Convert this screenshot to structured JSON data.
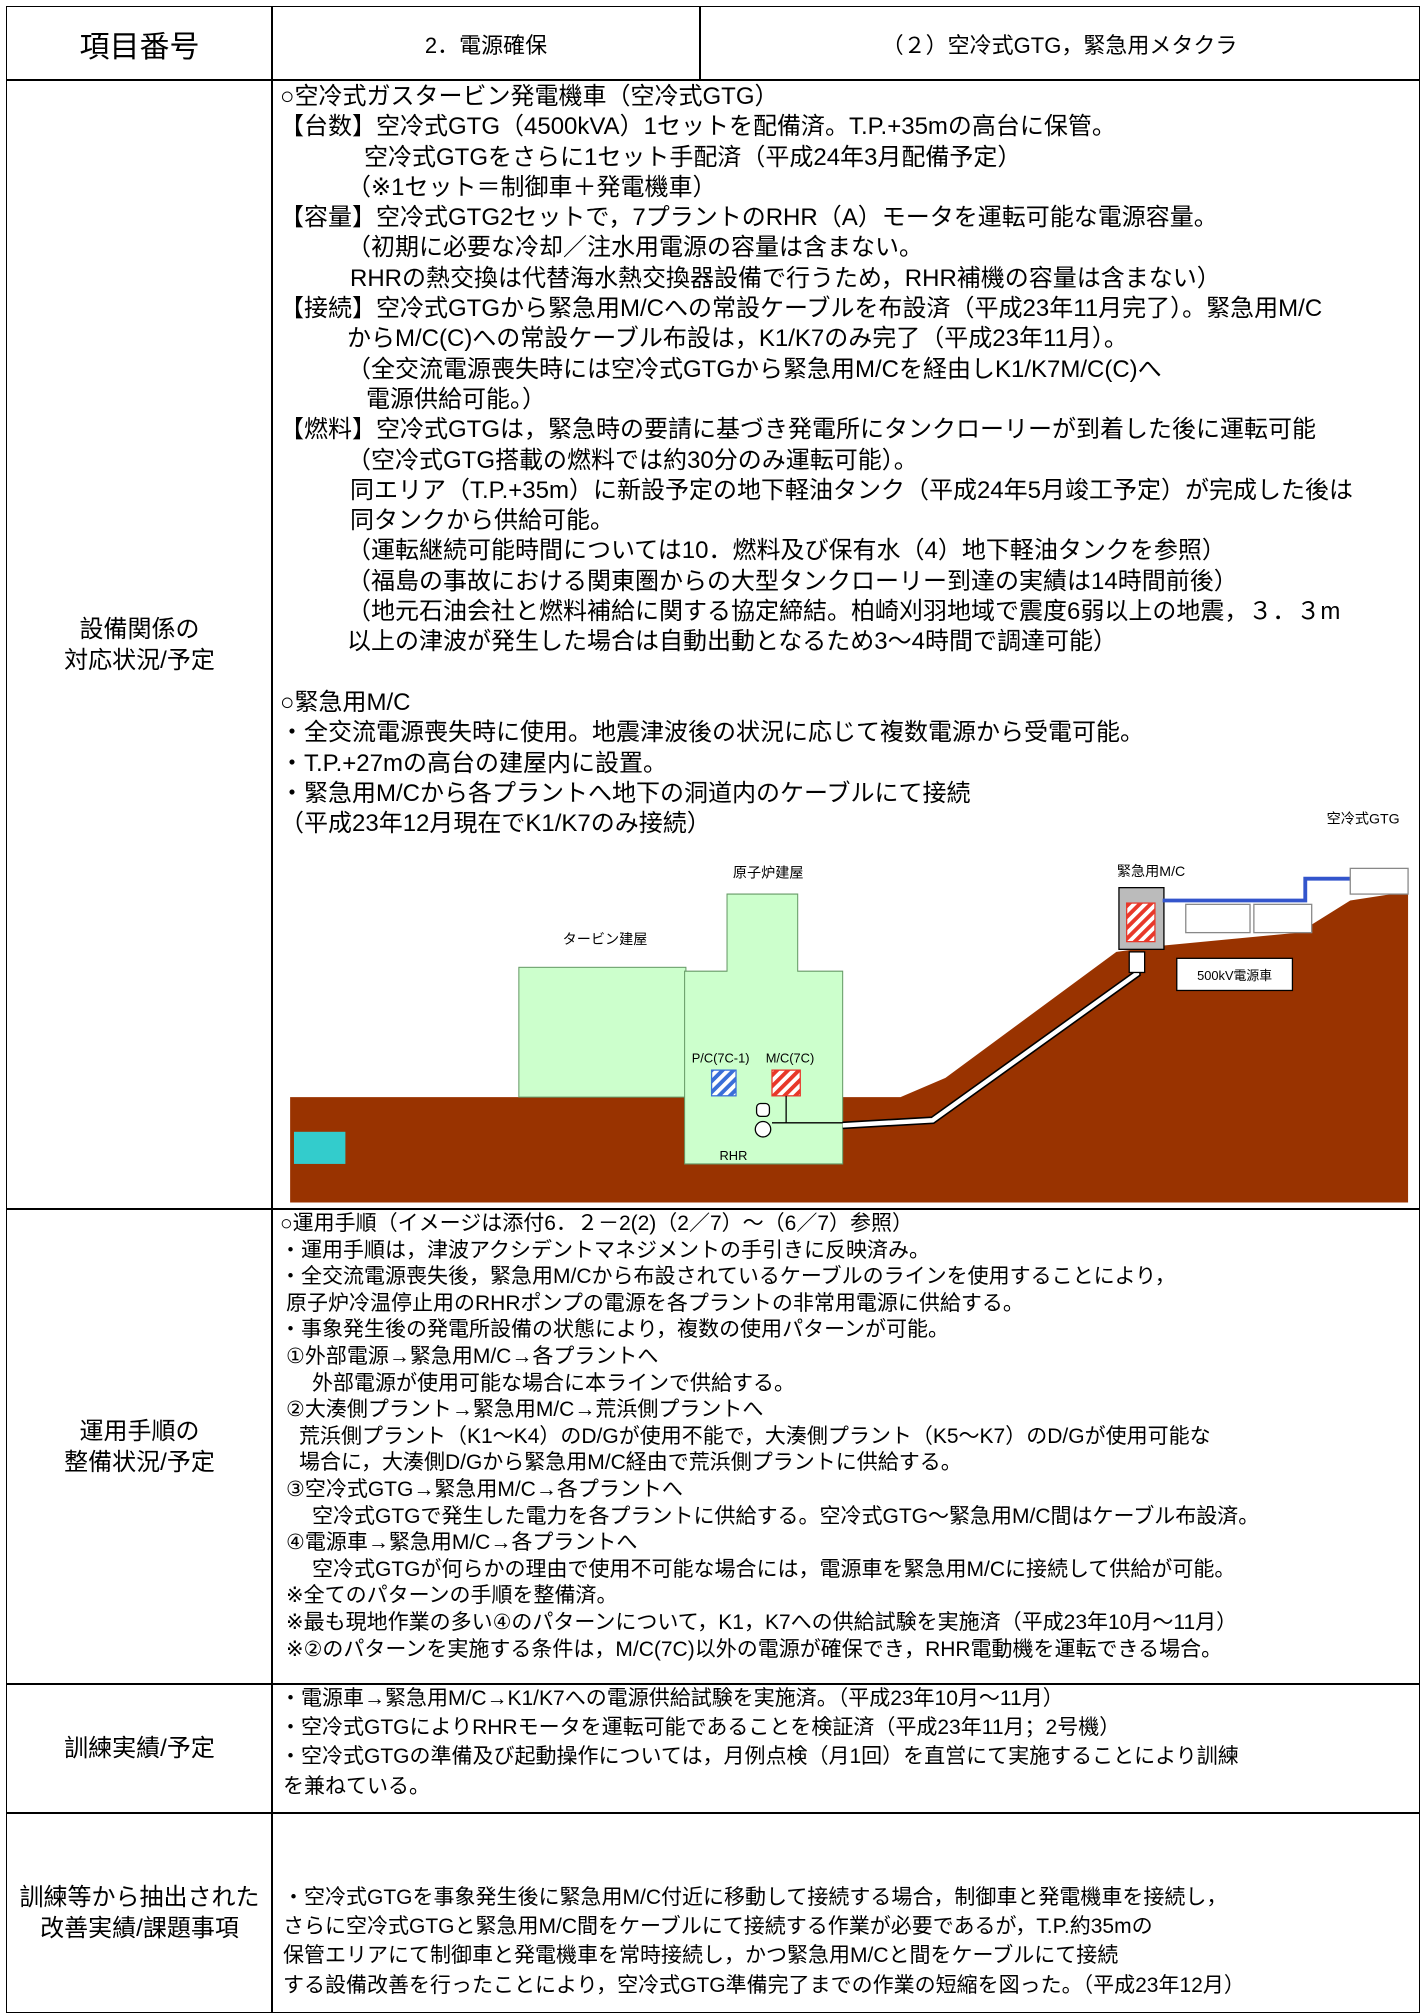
{
  "header": {
    "label": "項目番号",
    "item": "2．電源確保",
    "subitem": "（２）空冷式GTG，緊急用メタクラ"
  },
  "rows": [
    {
      "label": [
        "設備関係の",
        "対応状況/予定"
      ],
      "blocks": [
        [
          "○空冷式ガスタービン発電機車（空冷式GTG）",
          "【台数】空冷式GTG（4500kVA）1セットを配備済。T.P.+35mの高台に保管。",
          "空冷式GTGをさらに1セット手配済（平成24年3月配備予定）",
          "（※1セット＝制御車＋発電機車）",
          "【容量】空冷式GTG2セットで，7プラントのRHR（A）モータを運転可能な電源容量。",
          "（初期に必要な冷却／注水用電源の容量は含まない。",
          "RHRの熱交換は代替海水熱交換器設備で行うため，RHR補機の容量は含まない）",
          "【接続】空冷式GTGから緊急用M/Cへの常設ケーブルを布設済（平成23年11月完了）。緊急用M/C",
          "からM/C(C)への常設ケーブル布設は，K1/K7のみ完了（平成23年11月）。",
          "（全交流電源喪失時には空冷式GTGから緊急用M/Cを経由しK1/K7M/C(C)へ",
          "電源供給可能。）",
          "【燃料】空冷式GTGは，緊急時の要請に基づき発電所にタンクローリーが到着した後に運転可能",
          "（空冷式GTG搭載の燃料では約30分のみ運転可能）。",
          "同エリア（T.P.+35m）に新設予定の地下軽油タンク（平成24年5月竣工予定）が完成した後は",
          "同タンクから供給可能。",
          "（運転継続可能時間については10．燃料及び保有水（4）地下軽油タンクを参照）",
          "（福島の事故における関東圏からの大型タンクローリー到達の実績は14時間前後）",
          "（地元石油会社と燃料補給に関する協定締結。柏崎刈羽地域で震度6弱以上の地震，３．３m",
          "以上の津波が発生した場合は自動出動となるため3～4時間で調達可能）"
        ],
        [
          "○緊急用M/C",
          "・全交流電源喪失時に使用。地震津波後の状況に応じて複数電源から受電可能。",
          "・T.P.+27mの高台の建屋内に設置。",
          "・緊急用M/Cから各プラントへ地下の洞道内のケーブルにて接続",
          "（平成23年12月現在でK1/K7のみ接続）"
        ]
      ],
      "diagram": {
        "gtg": "空冷式GTG",
        "emergency_mc": "緊急用M/C",
        "reactor_building": "原子炉建屋",
        "turbine_building": "タービン建屋",
        "pc": "P/C(7C-1)",
        "mc": "M/C(7C)",
        "rhr": "RHR",
        "power_vehicle": "500kV電源車"
      }
    },
    {
      "label": [
        "運用手順の",
        "整備状況/予定"
      ],
      "blocks": [
        [
          "○運用手順（イメージは添付6．２－2(2)（2／7）～（6／7）参照）",
          "・運用手順は，津波アクシデントマネジメントの手引きに反映済み。",
          "・全交流電源喪失後，緊急用M/Cから布設されているケーブルのラインを使用することにより，",
          "原子炉冷温停止用のRHRポンプの電源を各プラントの非常用電源に供給する。",
          "・事象発生後の発電所設備の状態により，複数の使用パターンが可能。",
          "①外部電源→緊急用M/C→各プラントへ",
          "外部電源が使用可能な場合に本ラインで供給する。",
          "②大湊側プラント→緊急用M/C→荒浜側プラントへ",
          "荒浜側プラント（K1～K4）のD/Gが使用不能で，大湊側プラント（K5～K7）のD/Gが使用可能な",
          "場合に，大湊側D/Gから緊急用M/C経由で荒浜側プラントに供給する。",
          "③空冷式GTG→緊急用M/C→各プラントへ",
          "空冷式GTGで発生した電力を各プラントに供給する。空冷式GTG～緊急用M/C間はケーブル布設済。",
          "④電源車→緊急用M/C→各プラントへ",
          "空冷式GTGが何らかの理由で使用不可能な場合には，電源車を緊急用M/Cに接続して供給が可能。",
          "※全てのパターンの手順を整備済。",
          "※最も現地作業の多い④のパターンについて，K1，K7への供給試験を実施済（平成23年10月～11月）",
          "※②のパターンを実施する条件は，M/C(7C)以外の電源が確保でき，RHR電動機を運転できる場合。"
        ]
      ]
    },
    {
      "label": [
        "訓練実績/予定"
      ],
      "blocks": [
        [
          "・電源車→緊急用M/C→K1/K7への電源供給試験を実施済。（平成23年10月～11月）",
          "・空冷式GTGによりRHRモータを運転可能であることを検証済（平成23年11月；2号機）",
          "・空冷式GTGの準備及び起動操作については，月例点検（月1回）を直営にて実施することにより訓練",
          "を兼ねている。"
        ]
      ]
    },
    {
      "label": [
        "訓練等から抽出された",
        "改善実績/課題事項"
      ],
      "blocks": [
        [
          "・空冷式GTGを事象発生後に緊急用M/C付近に移動して接続する場合，制御車と発電機車を接続し，",
          "さらに空冷式GTGと緊急用M/C間をケーブルにて接続する作業が必要であるが，T.P.約35mの",
          "保管エリアにて制御車と発電機車を常時接続し，かつ緊急用M/Cと間をケーブルにて接続",
          "する設備改善を行ったことにより，空冷式GTG準備完了までの作業の短縮を図った。（平成23年12月）"
        ]
      ]
    }
  ]
}
